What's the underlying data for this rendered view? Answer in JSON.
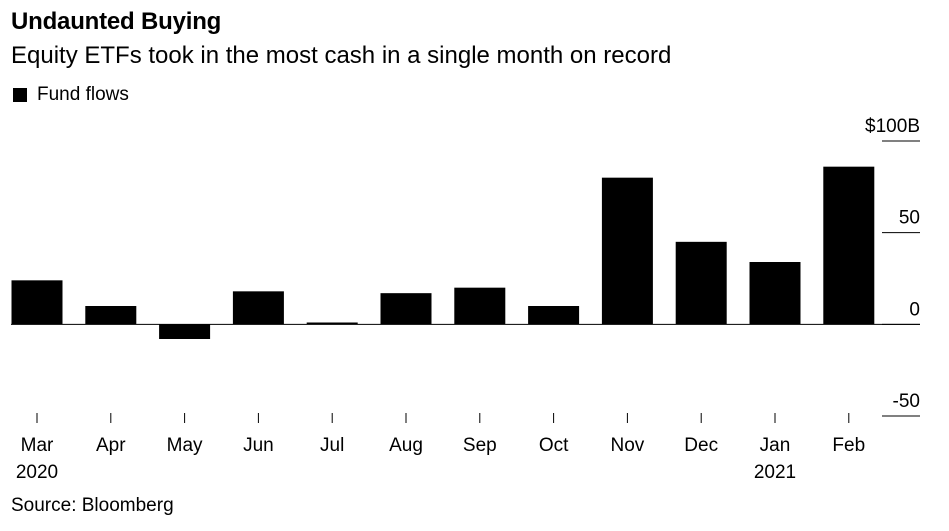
{
  "header": {
    "title": "Undaunted Buying",
    "subtitle": "Equity ETFs took in the most cash in a single month on record"
  },
  "legend": {
    "label": "Fund flows",
    "color": "#000000"
  },
  "footer": {
    "source": "Source: Bloomberg"
  },
  "chart_data": {
    "type": "bar",
    "title": "Undaunted Buying",
    "subtitle": "Equity ETFs took in the most cash in a single month on record",
    "categories": [
      "Mar",
      "Apr",
      "May",
      "Jun",
      "Jul",
      "Aug",
      "Sep",
      "Oct",
      "Nov",
      "Dec",
      "Jan",
      "Feb"
    ],
    "year_labels": [
      "2020",
      "",
      "",
      "",
      "",
      "",
      "",
      "",
      "",
      "",
      "2021",
      ""
    ],
    "series": [
      {
        "name": "Fund flows",
        "color": "#000000",
        "values": [
          24,
          10,
          -8,
          18,
          1,
          17,
          20,
          10,
          80,
          45,
          34,
          86
        ]
      }
    ],
    "ylim": [
      -50,
      100
    ],
    "y_ticks": [
      100,
      50,
      0,
      -50
    ],
    "y_tick_labels": [
      "$100B",
      "50",
      "0",
      "-50"
    ],
    "xlabel": "",
    "ylabel": "",
    "legend_position": "top-left",
    "grid": false
  }
}
